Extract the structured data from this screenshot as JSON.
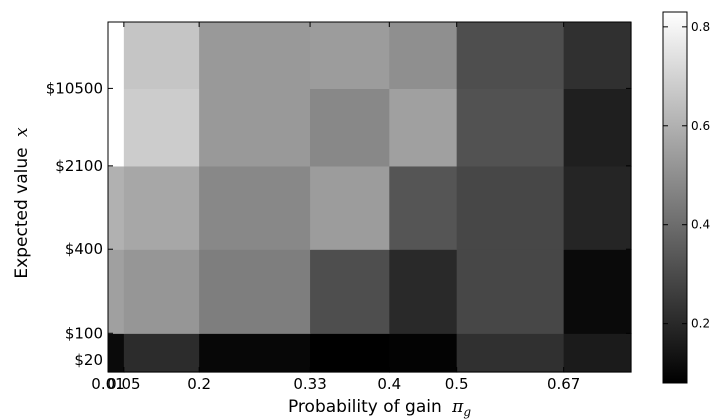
{
  "chart_data": {
    "type": "heatmap",
    "title": "",
    "xlabel": "Probability of gain",
    "xlabel_symbol": "π",
    "xlabel_subscript": "g",
    "ylabel": "Expected value",
    "ylabel_symbol": "x",
    "x_tick_labels": [
      "0.01",
      "0.05",
      "0.2",
      "0.33",
      "0.4",
      "0.5",
      "0.67"
    ],
    "y_tick_labels": [
      "$10500",
      "$2100",
      "$400",
      "$100",
      "$20"
    ],
    "colorbar": {
      "colormap": "gray",
      "range": [
        0.08,
        0.83
      ],
      "ticks": [
        0.2,
        0.4,
        0.6,
        0.8
      ],
      "tick_labels": [
        "0.2",
        "0.4",
        "0.6",
        "0.8"
      ]
    },
    "x_edges": [
      0.01,
      0.03,
      0.125,
      0.265,
      0.365,
      0.45,
      0.585,
      0.67
    ],
    "y_edges": [
      20,
      40,
      180,
      800,
      3200,
      10500
    ],
    "row_order": "bottom-to-top",
    "values": [
      [
        0.11,
        0.21,
        0.1,
        0.08,
        0.09,
        0.22,
        0.16
      ],
      [
        0.55,
        0.52,
        0.45,
        0.31,
        0.2,
        0.29,
        0.11
      ],
      [
        0.6,
        0.57,
        0.48,
        0.54,
        0.33,
        0.29,
        0.19
      ],
      [
        0.83,
        0.68,
        0.53,
        0.48,
        0.55,
        0.32,
        0.17
      ],
      [
        0.83,
        0.66,
        0.53,
        0.54,
        0.5,
        0.31,
        0.22
      ]
    ],
    "grid": false,
    "legend": "none"
  }
}
